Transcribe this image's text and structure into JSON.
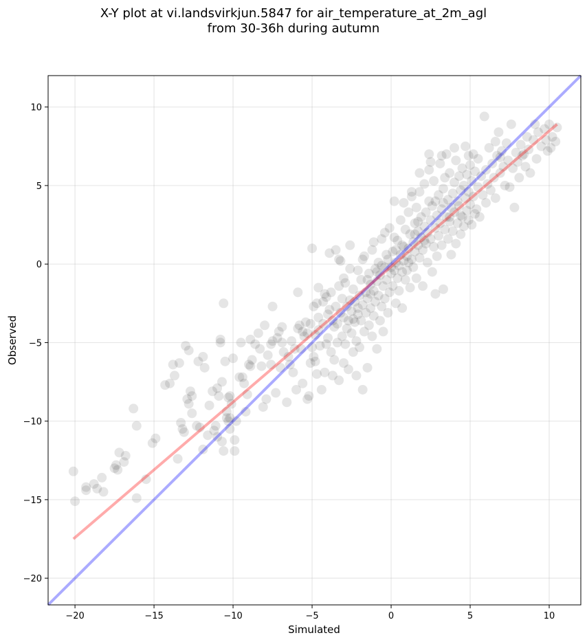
{
  "chart_data": {
    "type": "scatter",
    "title": "X-Y plot at vi.landsvirkjun.5847 for air_temperature_at_2m_agl",
    "subtitle": "from 30-36h during autumn",
    "xlabel": "Simulated",
    "ylabel": "Observed",
    "xlim": [
      -21.7,
      12.0
    ],
    "ylim": [
      -21.7,
      12.0
    ],
    "xticks": [
      -20,
      -15,
      -10,
      -5,
      0,
      5,
      10
    ],
    "yticks": [
      -20,
      -15,
      -10,
      -5,
      0,
      5,
      10
    ],
    "xtick_labels": [
      "−20",
      "−15",
      "−10",
      "−5",
      "0",
      "5",
      "10"
    ],
    "ytick_labels": [
      "−20",
      "−15",
      "−10",
      "−5",
      "0",
      "5",
      "10"
    ],
    "grid": true,
    "point_color": "#000000",
    "point_alpha": 0.1,
    "lines": [
      {
        "kind": "identity",
        "color": "#0000ff",
        "alpha": 0.33,
        "x": [
          -21.7,
          12.0
        ],
        "y": [
          -21.7,
          12.0
        ]
      },
      {
        "kind": "regression",
        "color": "#ff0000",
        "alpha": 0.33,
        "x": [
          -20.1,
          10.5
        ],
        "y": [
          -17.5,
          8.9
        ]
      }
    ],
    "points": [
      [
        -20.1,
        -13.2
      ],
      [
        -20.0,
        -15.1
      ],
      [
        -19.3,
        -14.2
      ],
      [
        -19.3,
        -14.4
      ],
      [
        -18.8,
        -14.0
      ],
      [
        -18.6,
        -14.3
      ],
      [
        -18.3,
        -13.6
      ],
      [
        -18.2,
        -14.5
      ],
      [
        -17.5,
        -13.0
      ],
      [
        -17.4,
        -12.8
      ],
      [
        -17.3,
        -13.1
      ],
      [
        -17.2,
        -12.0
      ],
      [
        -16.9,
        -12.6
      ],
      [
        -16.8,
        -12.2
      ],
      [
        -16.3,
        -9.2
      ],
      [
        -16.1,
        -10.3
      ],
      [
        -16.1,
        -14.9
      ],
      [
        -15.5,
        -13.7
      ],
      [
        -15.1,
        -11.4
      ],
      [
        -14.9,
        -11.1
      ],
      [
        -14.3,
        -7.7
      ],
      [
        -13.8,
        -6.4
      ],
      [
        -13.7,
        -7.1
      ],
      [
        -13.4,
        -6.3
      ],
      [
        -13.5,
        -12.4
      ],
      [
        -13.3,
        -10.1
      ],
      [
        -13.1,
        -10.7
      ],
      [
        -13.0,
        -5.2
      ],
      [
        -12.9,
        -8.6
      ],
      [
        -12.8,
        -5.5
      ],
      [
        -12.8,
        -8.9
      ],
      [
        -12.7,
        -8.1
      ],
      [
        -12.6,
        -8.4
      ],
      [
        -12.3,
        -10.3
      ],
      [
        -12.2,
        -6.2
      ],
      [
        -12.1,
        -10.4
      ],
      [
        -11.9,
        -5.9
      ],
      [
        -11.8,
        -6.6
      ],
      [
        -11.6,
        -10.9
      ],
      [
        -11.5,
        -9.0
      ],
      [
        -11.3,
        -8.1
      ],
      [
        -11.2,
        -10.6
      ],
      [
        -11.1,
        -10.3
      ],
      [
        -11.0,
        -11.0
      ],
      [
        -11.0,
        -7.9
      ],
      [
        -10.9,
        -8.4
      ],
      [
        -10.8,
        -5.0
      ],
      [
        -10.8,
        -4.8
      ],
      [
        -10.7,
        -7.5
      ],
      [
        -10.7,
        -11.3
      ],
      [
        -10.6,
        -11.9
      ],
      [
        -10.6,
        -2.5
      ],
      [
        -10.5,
        -6.2
      ],
      [
        -10.4,
        -9.4
      ],
      [
        -10.3,
        -8.5
      ],
      [
        -10.3,
        -10.0
      ],
      [
        -10.2,
        -9.8
      ],
      [
        -10.2,
        -10.5
      ],
      [
        -10.0,
        -6.0
      ],
      [
        -9.9,
        -11.2
      ],
      [
        -9.9,
        -11.9
      ],
      [
        -9.8,
        -10.0
      ],
      [
        -9.5,
        -5.0
      ],
      [
        -9.4,
        -7.2
      ],
      [
        -9.3,
        -7.6
      ],
      [
        -9.2,
        -9.4
      ],
      [
        -9.1,
        -8.3
      ],
      [
        -9.0,
        -6.4
      ],
      [
        -8.9,
        -4.8
      ],
      [
        -8.8,
        -6.1
      ],
      [
        -8.6,
        -5.1
      ],
      [
        -8.3,
        -5.4
      ],
      [
        -8.2,
        -6.5
      ],
      [
        -8.1,
        -9.1
      ],
      [
        -8.0,
        -3.9
      ],
      [
        -7.9,
        -8.6
      ],
      [
        -7.8,
        -5.8
      ],
      [
        -7.6,
        -5.1
      ],
      [
        -7.5,
        -2.7
      ],
      [
        -7.3,
        -8.2
      ],
      [
        -7.2,
        -4.7
      ],
      [
        -7.1,
        -4.3
      ],
      [
        -7.0,
        -6.6
      ],
      [
        -6.9,
        -4.0
      ],
      [
        -6.8,
        -5.6
      ],
      [
        -6.6,
        -8.8
      ],
      [
        -6.5,
        -5.9
      ],
      [
        -6.4,
        -6.4
      ],
      [
        -6.3,
        -4.9
      ],
      [
        -6.2,
        -6.9
      ],
      [
        -6.0,
        -8.0
      ],
      [
        -5.9,
        -4.1
      ],
      [
        -5.9,
        -1.8
      ],
      [
        -5.8,
        -3.9
      ],
      [
        -5.7,
        -5.4
      ],
      [
        -5.6,
        -7.6
      ],
      [
        -5.5,
        -4.6
      ],
      [
        -5.4,
        -3.7
      ],
      [
        -5.3,
        -8.6
      ],
      [
        -5.3,
        -4.4
      ],
      [
        -5.2,
        -8.4
      ],
      [
        -5.1,
        -6.3
      ],
      [
        -5.1,
        -3.8
      ],
      [
        -5.0,
        -5.3
      ],
      [
        -5.0,
        1.0
      ],
      [
        -4.9,
        -2.7
      ],
      [
        -4.9,
        -5.9
      ],
      [
        -4.8,
        -6.2
      ],
      [
        -4.8,
        -4.5
      ],
      [
        -4.7,
        -2.5
      ],
      [
        -4.7,
        -7.0
      ],
      [
        -4.6,
        -4.2
      ],
      [
        -4.6,
        -3.4
      ],
      [
        -4.5,
        -5.2
      ],
      [
        -4.4,
        -8.0
      ],
      [
        -4.3,
        -2.4
      ],
      [
        -4.3,
        -3.8
      ],
      [
        -4.2,
        -6.9
      ],
      [
        -4.2,
        -1.9
      ],
      [
        -4.1,
        -5.1
      ],
      [
        -4.0,
        -3.2
      ],
      [
        -4.0,
        -4.7
      ],
      [
        -3.9,
        -2.9
      ],
      [
        -3.9,
        0.7
      ],
      [
        -3.8,
        -5.6
      ],
      [
        -3.8,
        -1.8
      ],
      [
        -3.7,
        -7.1
      ],
      [
        -3.7,
        -3.6
      ],
      [
        -3.6,
        -4.0
      ],
      [
        -3.6,
        -6.1
      ],
      [
        -3.5,
        0.9
      ],
      [
        -3.5,
        -2.7
      ],
      [
        -3.4,
        -3.8
      ],
      [
        -3.4,
        -5.0
      ],
      [
        -3.3,
        -1.4
      ],
      [
        -3.3,
        -7.4
      ],
      [
        -3.2,
        -3.1
      ],
      [
        -3.2,
        0.2
      ],
      [
        -3.1,
        -4.6
      ],
      [
        -3.1,
        -2.2
      ],
      [
        -3.0,
        -6.3
      ],
      [
        -3.0,
        -3.4
      ],
      [
        -2.9,
        -5.1
      ],
      [
        -2.9,
        -1.2
      ],
      [
        -2.8,
        -2.7
      ],
      [
        -2.8,
        -4.1
      ],
      [
        -2.7,
        -6.7
      ],
      [
        -2.7,
        -3.6
      ],
      [
        -2.6,
        -2.3
      ],
      [
        -2.6,
        1.2
      ],
      [
        -2.5,
        -4.4
      ],
      [
        -2.5,
        -3.0
      ],
      [
        -2.4,
        -5.6
      ],
      [
        -2.4,
        -1.6
      ],
      [
        -2.3,
        -3.7
      ],
      [
        -2.3,
        -2.4
      ],
      [
        -2.2,
        -7.1
      ],
      [
        -2.2,
        -4.9
      ],
      [
        -2.1,
        -0.4
      ],
      [
        -2.1,
        -3.2
      ],
      [
        -2.0,
        -2.0
      ],
      [
        -2.0,
        -5.3
      ],
      [
        -1.9,
        -1.0
      ],
      [
        -1.9,
        -3.6
      ],
      [
        -1.8,
        -2.6
      ],
      [
        -1.8,
        -8.0
      ],
      [
        -1.7,
        -4.3
      ],
      [
        -1.7,
        0.5
      ],
      [
        -1.6,
        -1.8
      ],
      [
        -1.6,
        -3.1
      ],
      [
        -1.5,
        -2.2
      ],
      [
        -1.5,
        -6.6
      ],
      [
        -1.4,
        -0.6
      ],
      [
        -1.4,
        -3.9
      ],
      [
        -1.3,
        -1.3
      ],
      [
        -1.3,
        -2.8
      ],
      [
        -1.2,
        -4.6
      ],
      [
        -1.2,
        0.9
      ],
      [
        -1.1,
        -1.7
      ],
      [
        -1.1,
        -3.3
      ],
      [
        -1.0,
        -0.3
      ],
      [
        -1.0,
        -2.4
      ],
      [
        -0.9,
        -5.4
      ],
      [
        -0.9,
        -1.1
      ],
      [
        -0.8,
        -2.0
      ],
      [
        -0.8,
        0.1
      ],
      [
        -0.7,
        -3.6
      ],
      [
        -0.7,
        -0.7
      ],
      [
        -0.6,
        1.6
      ],
      [
        -0.6,
        -2.7
      ],
      [
        -0.5,
        -1.4
      ],
      [
        -0.5,
        -4.3
      ],
      [
        -0.4,
        -0.2
      ],
      [
        -0.4,
        -2.2
      ],
      [
        -0.3,
        0.6
      ],
      [
        -0.3,
        -1.0
      ],
      [
        -0.2,
        -3.1
      ],
      [
        -0.2,
        0.3
      ],
      [
        -0.1,
        -1.8
      ],
      [
        -0.1,
        2.3
      ],
      [
        0.0,
        -0.6
      ],
      [
        0.0,
        -0.2
      ],
      [
        0.1,
        -1.4
      ],
      [
        0.1,
        0.8
      ],
      [
        0.2,
        -0.4
      ],
      [
        0.2,
        4.0
      ],
      [
        0.3,
        -2.5
      ],
      [
        0.3,
        0.1
      ],
      [
        0.4,
        -0.9
      ],
      [
        0.4,
        1.5
      ],
      [
        0.5,
        -0.1
      ],
      [
        0.5,
        -1.7
      ],
      [
        0.6,
        0.6
      ],
      [
        0.6,
        2.8
      ],
      [
        0.7,
        -0.5
      ],
      [
        0.7,
        -2.8
      ],
      [
        0.8,
        1.1
      ],
      [
        0.8,
        0.2
      ],
      [
        0.9,
        -1.0
      ],
      [
        0.9,
        2.2
      ],
      [
        1.0,
        0.5
      ],
      [
        1.0,
        -0.4
      ],
      [
        1.1,
        3.3
      ],
      [
        1.1,
        1.0
      ],
      [
        1.2,
        -1.5
      ],
      [
        1.2,
        1.9
      ],
      [
        1.3,
        0.3
      ],
      [
        1.3,
        4.3
      ],
      [
        1.4,
        1.4
      ],
      [
        1.4,
        -0.2
      ],
      [
        1.5,
        2.6
      ],
      [
        1.5,
        0.8
      ],
      [
        1.6,
        3.6
      ],
      [
        1.6,
        -0.9
      ],
      [
        1.7,
        1.2
      ],
      [
        1.7,
        2.1
      ],
      [
        1.8,
        0.4
      ],
      [
        1.8,
        4.6
      ],
      [
        1.9,
        1.7
      ],
      [
        1.9,
        3.0
      ],
      [
        2.0,
        0.9
      ],
      [
        2.0,
        -1.4
      ],
      [
        2.1,
        2.4
      ],
      [
        2.1,
        5.1
      ],
      [
        2.2,
        1.3
      ],
      [
        2.2,
        3.3
      ],
      [
        2.3,
        0.1
      ],
      [
        2.3,
        2.0
      ],
      [
        2.4,
        4.0
      ],
      [
        2.4,
        6.0
      ],
      [
        2.5,
        1.6
      ],
      [
        2.5,
        2.8
      ],
      [
        2.6,
        -0.5
      ],
      [
        2.6,
        3.7
      ],
      [
        2.7,
        1.1
      ],
      [
        2.7,
        5.3
      ],
      [
        2.8,
        2.3
      ],
      [
        2.8,
        -1.9
      ],
      [
        2.9,
        3.1
      ],
      [
        2.9,
        0.5
      ],
      [
        3.0,
        4.4
      ],
      [
        3.0,
        1.8
      ],
      [
        3.1,
        2.6
      ],
      [
        3.1,
        6.4
      ],
      [
        3.2,
        3.5
      ],
      [
        3.2,
        1.2
      ],
      [
        3.3,
        4.8
      ],
      [
        3.3,
        -1.6
      ],
      [
        3.4,
        2.2
      ],
      [
        3.4,
        5.5
      ],
      [
        3.5,
        3.0
      ],
      [
        3.5,
        7.0
      ],
      [
        3.6,
        1.6
      ],
      [
        3.6,
        4.1
      ],
      [
        3.7,
        2.7
      ],
      [
        3.7,
        5.8
      ],
      [
        3.8,
        3.6
      ],
      [
        3.8,
        0.6
      ],
      [
        3.9,
        4.5
      ],
      [
        3.9,
        2.1
      ],
      [
        4.0,
        5.2
      ],
      [
        4.0,
        3.3
      ],
      [
        4.1,
        6.6
      ],
      [
        4.1,
        1.3
      ],
      [
        4.2,
        4.0
      ],
      [
        4.2,
        2.6
      ],
      [
        4.3,
        5.6
      ],
      [
        4.3,
        3.7
      ],
      [
        4.4,
        4.7
      ],
      [
        4.4,
        1.9
      ],
      [
        4.5,
        6.1
      ],
      [
        4.5,
        3.0
      ],
      [
        4.6,
        5.0
      ],
      [
        4.6,
        2.4
      ],
      [
        4.7,
        4.2
      ],
      [
        4.7,
        7.5
      ],
      [
        4.8,
        3.4
      ],
      [
        4.8,
        5.7
      ],
      [
        4.9,
        2.8
      ],
      [
        4.9,
        4.6
      ],
      [
        5.0,
        6.3
      ],
      [
        5.0,
        3.8
      ],
      [
        5.1,
        5.3
      ],
      [
        5.1,
        2.5
      ],
      [
        5.2,
        4.3
      ],
      [
        5.2,
        7.0
      ],
      [
        5.3,
        5.9
      ],
      [
        5.3,
        3.2
      ],
      [
        5.5,
        4.9
      ],
      [
        5.5,
        6.7
      ],
      [
        5.6,
        3.0
      ],
      [
        5.7,
        5.6
      ],
      [
        5.8,
        4.4
      ],
      [
        5.9,
        9.4
      ],
      [
        6.0,
        6.0
      ],
      [
        6.0,
        3.9
      ],
      [
        6.1,
        5.1
      ],
      [
        6.2,
        7.4
      ],
      [
        6.3,
        4.7
      ],
      [
        6.4,
        6.4
      ],
      [
        6.5,
        5.5
      ],
      [
        6.6,
        7.8
      ],
      [
        6.6,
        4.2
      ],
      [
        6.7,
        6.9
      ],
      [
        6.8,
        8.4
      ],
      [
        6.9,
        5.8
      ],
      [
        7.0,
        7.2
      ],
      [
        7.1,
        6.2
      ],
      [
        7.2,
        5.0
      ],
      [
        7.3,
        7.7
      ],
      [
        7.4,
        6.6
      ],
      [
        7.5,
        4.9
      ],
      [
        7.6,
        8.9
      ],
      [
        7.7,
        6.1
      ],
      [
        7.8,
        3.6
      ],
      [
        7.9,
        7.1
      ],
      [
        8.0,
        6.5
      ],
      [
        8.1,
        5.5
      ],
      [
        8.2,
        7.6
      ],
      [
        8.3,
        6.9
      ],
      [
        8.5,
        6.2
      ],
      [
        8.6,
        8.1
      ],
      [
        8.7,
        7.3
      ],
      [
        8.8,
        5.8
      ],
      [
        9.0,
        7.9
      ],
      [
        9.2,
        6.7
      ],
      [
        9.3,
        8.4
      ],
      [
        9.5,
        7.5
      ],
      [
        9.7,
        8.6
      ],
      [
        9.9,
        7.2
      ],
      [
        10.0,
        8.9
      ],
      [
        10.1,
        7.4
      ],
      [
        10.2,
        8.1
      ],
      [
        10.4,
        7.8
      ],
      [
        10.5,
        8.7
      ],
      [
        9.8,
        7.9
      ],
      [
        9.1,
        8.9
      ],
      [
        8.4,
        7.0
      ],
      [
        6.9,
        6.8
      ],
      [
        5.4,
        3.5
      ],
      [
        4.9,
        6.9
      ],
      [
        4.0,
        7.4
      ],
      [
        3.2,
        6.9
      ],
      [
        2.5,
        6.5
      ],
      [
        2.4,
        7.0
      ],
      [
        1.8,
        5.8
      ],
      [
        1.3,
        4.6
      ],
      [
        0.8,
        3.9
      ],
      [
        0.2,
        1.7
      ],
      [
        -0.4,
        2.0
      ],
      [
        -1.1,
        1.4
      ],
      [
        -1.8,
        0.3
      ],
      [
        -2.6,
        -0.3
      ],
      [
        -3.0,
        -0.9
      ],
      [
        -3.3,
        0.3
      ],
      [
        -4.1,
        -2.1
      ],
      [
        -4.6,
        -1.5
      ],
      [
        -5.6,
        -4.3
      ],
      [
        -6.1,
        -5.4
      ],
      [
        -6.9,
        -5.0
      ],
      [
        -7.5,
        -4.9
      ],
      [
        -7.6,
        -6.4
      ],
      [
        -8.4,
        -4.4
      ],
      [
        -8.9,
        -6.5
      ],
      [
        -9.6,
        -7.2
      ],
      [
        -10.1,
        -8.9
      ],
      [
        -10.4,
        -9.8
      ],
      [
        -11.9,
        -11.8
      ],
      [
        -12.6,
        -9.5
      ],
      [
        -13.2,
        -10.5
      ],
      [
        -14.0,
        -7.6
      ],
      [
        -10.2,
        -8.4
      ],
      [
        3.7,
        3.0
      ],
      [
        1.5,
        1.9
      ],
      [
        0.7,
        1.2
      ],
      [
        -0.9,
        -0.5
      ],
      [
        -1.5,
        -1.0
      ],
      [
        -2.1,
        -2.8
      ],
      [
        2.8,
        4.0
      ],
      [
        3.3,
        3.9
      ],
      [
        4.4,
        3.1
      ],
      [
        1.1,
        0.1
      ],
      [
        -0.6,
        -0.1
      ],
      [
        -1.3,
        -1.9
      ],
      [
        -2.4,
        -3.5
      ],
      [
        2.1,
        1.5
      ],
      [
        1.7,
        2.7
      ],
      [
        0.3,
        0.9
      ]
    ]
  }
}
